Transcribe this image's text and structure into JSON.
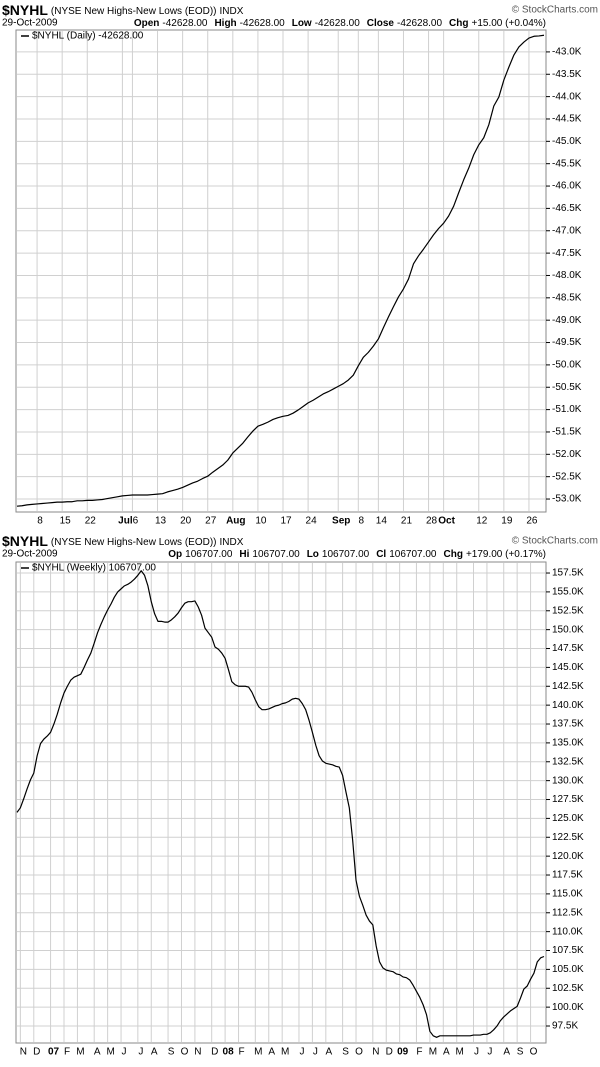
{
  "chart_data": [
    {
      "type": "line",
      "title": "$NYHL",
      "subtitle": "(NYSE New Highs-New Lows (EOD))",
      "exchange": "INDX",
      "source": "© StockCharts.com",
      "date": "29-Oct-2009",
      "quote": [
        {
          "label": "Open",
          "value": "-42628.00"
        },
        {
          "label": "High",
          "value": "-42628.00"
        },
        {
          "label": "Low",
          "value": "-42628.00"
        },
        {
          "label": "Close",
          "value": "-42628.00"
        },
        {
          "label": "Chg",
          "value": "+15.00 (+0.04%)"
        }
      ],
      "categories": [
        null,
        null,
        null,
        null,
        "8",
        null,
        null,
        null,
        null,
        "15",
        null,
        null,
        null,
        null,
        "22",
        null,
        null,
        null,
        null,
        null,
        null,
        "Jul",
        null,
        "6",
        null,
        null,
        null,
        null,
        "13",
        null,
        null,
        null,
        null,
        "20",
        null,
        null,
        null,
        null,
        "27",
        null,
        null,
        null,
        null,
        "Aug",
        null,
        null,
        null,
        null,
        "10",
        null,
        null,
        null,
        null,
        "17",
        null,
        null,
        null,
        null,
        "24",
        null,
        null,
        null,
        null,
        null,
        "Sep",
        null,
        null,
        null,
        "8",
        null,
        null,
        null,
        "14",
        null,
        null,
        null,
        null,
        "21",
        null,
        null,
        null,
        null,
        "28",
        null,
        null,
        "Oct",
        null,
        null,
        null,
        null,
        null,
        null,
        "12",
        null,
        null,
        null,
        null,
        "19",
        null,
        null,
        null,
        null,
        "26",
        null,
        null,
        null
      ],
      "series": [
        {
          "name": "$NYHL (Daily) -42628.00",
          "color": "#000000",
          "values": [
            -53160,
            -53150,
            -53130,
            -53120,
            -53110,
            -53100,
            -53090,
            -53080,
            -53070,
            -53070,
            -53060,
            -53060,
            -53040,
            -53040,
            -53030,
            -53030,
            -53020,
            -53010,
            -52990,
            -52970,
            -52950,
            -52930,
            -52920,
            -52910,
            -52910,
            -52910,
            -52910,
            -52900,
            -52890,
            -52880,
            -52840,
            -52810,
            -52780,
            -52740,
            -52690,
            -52640,
            -52600,
            -52540,
            -52490,
            -52400,
            -52320,
            -52240,
            -52130,
            -51970,
            -51860,
            -51750,
            -51610,
            -51480,
            -51370,
            -51330,
            -51280,
            -51220,
            -51180,
            -51150,
            -51130,
            -51080,
            -51010,
            -50930,
            -50850,
            -50790,
            -50720,
            -50650,
            -50600,
            -50540,
            -50480,
            -50420,
            -50340,
            -50230,
            -50020,
            -49830,
            -49720,
            -49580,
            -49420,
            -49170,
            -48930,
            -48700,
            -48480,
            -48300,
            -48080,
            -47740,
            -47560,
            -47410,
            -47250,
            -47090,
            -46950,
            -46830,
            -46670,
            -46450,
            -46150,
            -45860,
            -45600,
            -45300,
            -45080,
            -44920,
            -44630,
            -44210,
            -44010,
            -43630,
            -43340,
            -43070,
            -42890,
            -42780,
            -42690,
            -42650,
            -42643,
            -42628
          ]
        }
      ],
      "ylim": [
        -53290,
        -42510
      ],
      "yticks": [
        {
          "value": -53000,
          "label": "-53.0K"
        },
        {
          "value": -52500,
          "label": "-52.5K"
        },
        {
          "value": -52000,
          "label": "-52.0K"
        },
        {
          "value": -51500,
          "label": "-51.5K"
        },
        {
          "value": -51000,
          "label": "-51.0K"
        },
        {
          "value": -50500,
          "label": "-50.5K"
        },
        {
          "value": -50000,
          "label": "-50.0K"
        },
        {
          "value": -49500,
          "label": "-49.5K"
        },
        {
          "value": -49000,
          "label": "-49.0K"
        },
        {
          "value": -48500,
          "label": "-48.5K"
        },
        {
          "value": -48000,
          "label": "-48.0K"
        },
        {
          "value": -47500,
          "label": "-47.5K"
        },
        {
          "value": -47000,
          "label": "-47.0K"
        },
        {
          "value": -46500,
          "label": "-46.5K"
        },
        {
          "value": -46000,
          "label": "-46.0K"
        },
        {
          "value": -45500,
          "label": "-45.5K"
        },
        {
          "value": -45000,
          "label": "-45.0K"
        },
        {
          "value": -44500,
          "label": "-44.5K"
        },
        {
          "value": -44000,
          "label": "-44.0K"
        },
        {
          "value": -43500,
          "label": "-43.5K"
        },
        {
          "value": -43000,
          "label": "-43.0K"
        }
      ],
      "grid": true,
      "legend": "upper left"
    },
    {
      "type": "line",
      "title": "$NYHL",
      "subtitle": "(NYSE New Highs-New Lows (EOD))",
      "exchange": "INDX",
      "source": "© StockCharts.com",
      "date": "29-Oct-2009",
      "quote": [
        {
          "label": "Op",
          "value": "106707.00"
        },
        {
          "label": "Hi",
          "value": "106707.00"
        },
        {
          "label": "Lo",
          "value": "106707.00"
        },
        {
          "label": "Cl",
          "value": "106707.00"
        },
        {
          "label": "Chg",
          "value": "+179.00 (+0.17%)"
        }
      ],
      "categories": [
        null,
        "N",
        null,
        null,
        null,
        "D",
        null,
        null,
        null,
        null,
        "07",
        null,
        null,
        null,
        "F",
        null,
        null,
        null,
        "M",
        null,
        null,
        null,
        null,
        "A",
        null,
        null,
        null,
        "M",
        null,
        null,
        null,
        "J",
        null,
        null,
        null,
        null,
        "J",
        null,
        null,
        null,
        "A",
        null,
        null,
        null,
        null,
        "S",
        null,
        null,
        null,
        "O",
        null,
        null,
        null,
        "N",
        null,
        null,
        null,
        null,
        "D",
        null,
        null,
        null,
        "08",
        null,
        null,
        null,
        "F",
        null,
        null,
        null,
        null,
        "M",
        null,
        null,
        null,
        "A",
        null,
        null,
        null,
        "M",
        null,
        null,
        null,
        null,
        "J",
        null,
        null,
        null,
        "J",
        null,
        null,
        null,
        "A",
        null,
        null,
        null,
        null,
        "S",
        null,
        null,
        null,
        "O",
        null,
        null,
        null,
        null,
        "N",
        null,
        null,
        null,
        "D",
        null,
        null,
        null,
        "09",
        null,
        null,
        null,
        null,
        "F",
        null,
        null,
        null,
        "M",
        null,
        null,
        null,
        "A",
        null,
        null,
        null,
        "M",
        null,
        null,
        null,
        null,
        "J",
        null,
        null,
        null,
        "J",
        null,
        null,
        null,
        null,
        "A",
        null,
        null,
        null,
        "S",
        null,
        null,
        null,
        "O",
        null,
        null,
        null,
        null
      ],
      "series": [
        {
          "name": "$NYHL (Weekly) 106707.00",
          "color": "#000000",
          "values": [
            125800,
            126400,
            127600,
            128900,
            130100,
            131000,
            133300,
            134900,
            135500,
            135900,
            136400,
            137500,
            138800,
            140300,
            141600,
            142500,
            143300,
            143700,
            143900,
            144100,
            145000,
            146000,
            146900,
            148200,
            149600,
            150700,
            151700,
            152600,
            153400,
            154300,
            155000,
            155400,
            155800,
            156000,
            156300,
            156700,
            157200,
            157800,
            157200,
            155800,
            153700,
            152100,
            151100,
            151100,
            151000,
            151000,
            151300,
            151700,
            152200,
            152900,
            153500,
            153700,
            153700,
            153800,
            153000,
            151900,
            150200,
            149600,
            149000,
            147700,
            147400,
            146900,
            146200,
            144700,
            143100,
            142700,
            142500,
            142500,
            142500,
            142400,
            141700,
            140700,
            139800,
            139400,
            139400,
            139500,
            139700,
            139900,
            140000,
            140200,
            140300,
            140500,
            140800,
            140900,
            140800,
            140200,
            139400,
            138000,
            136400,
            134700,
            133300,
            132600,
            132300,
            132200,
            132100,
            131900,
            131800,
            130700,
            128500,
            126400,
            122100,
            116800,
            114700,
            113500,
            112200,
            111400,
            110900,
            108100,
            106000,
            105200,
            104900,
            104800,
            104700,
            104400,
            104300,
            104000,
            103900,
            103600,
            102900,
            102100,
            101300,
            100300,
            99000,
            96800,
            96200,
            96000,
            96200,
            96200,
            96200,
            96200,
            96200,
            96200,
            96200,
            96200,
            96200,
            96200,
            96300,
            96300,
            96300,
            96400,
            96400,
            96600,
            97000,
            97500,
            98200,
            98700,
            99100,
            99500,
            99800,
            100100,
            101200,
            102400,
            102800,
            103700,
            104500,
            106000,
            106528,
            106707
          ]
        }
      ],
      "ylim": [
        95250,
        158960
      ],
      "yticks": [
        {
          "value": 97500,
          "label": "97.5K"
        },
        {
          "value": 100000,
          "label": "100.0K"
        },
        {
          "value": 102500,
          "label": "102.5K"
        },
        {
          "value": 105000,
          "label": "105.0K"
        },
        {
          "value": 107500,
          "label": "107.5K"
        },
        {
          "value": 110000,
          "label": "110.0K"
        },
        {
          "value": 112500,
          "label": "112.5K"
        },
        {
          "value": 115000,
          "label": "115.0K"
        },
        {
          "value": 117500,
          "label": "117.5K"
        },
        {
          "value": 120000,
          "label": "120.0K"
        },
        {
          "value": 122500,
          "label": "122.5K"
        },
        {
          "value": 125000,
          "label": "125.0K"
        },
        {
          "value": 127500,
          "label": "127.5K"
        },
        {
          "value": 130000,
          "label": "130.0K"
        },
        {
          "value": 132500,
          "label": "132.5K"
        },
        {
          "value": 135000,
          "label": "135.0K"
        },
        {
          "value": 137500,
          "label": "137.5K"
        },
        {
          "value": 140000,
          "label": "140.0K"
        },
        {
          "value": 142500,
          "label": "142.5K"
        },
        {
          "value": 145000,
          "label": "145.0K"
        },
        {
          "value": 147500,
          "label": "147.5K"
        },
        {
          "value": 150000,
          "label": "150.0K"
        },
        {
          "value": 152500,
          "label": "152.5K"
        },
        {
          "value": 155000,
          "label": "155.0K"
        },
        {
          "value": 157500,
          "label": "157.5K"
        }
      ],
      "grid": true,
      "legend": "upper left"
    }
  ]
}
